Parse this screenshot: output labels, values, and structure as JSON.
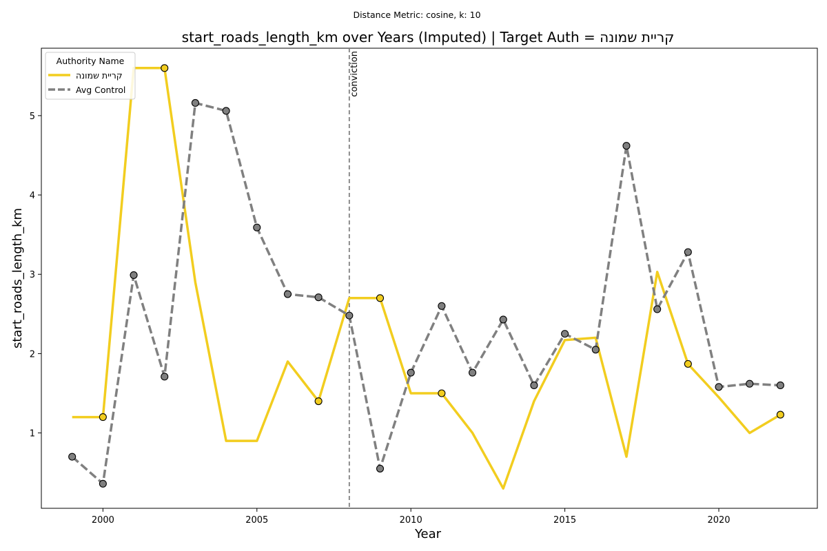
{
  "chart_data": {
    "type": "line",
    "subtitle": "Distance Metric: cosine, k: 10",
    "title": "start_roads_length_km over Years (Imputed) | Target Auth = קריית שמונה",
    "xlabel": "Year",
    "ylabel": "start_roads_length_km",
    "xlim": [
      1998,
      2023.2
    ],
    "ylim": [
      0.05,
      5.85
    ],
    "xticks": [
      2000,
      2005,
      2010,
      2015,
      2020
    ],
    "yticks": [
      1,
      2,
      3,
      4,
      5
    ],
    "grid": false,
    "legend": {
      "title": "Authority Name",
      "placement": "top-left"
    },
    "vline": {
      "x": 2008,
      "label": "conviction"
    },
    "series": [
      {
        "name": "קריית שמונה",
        "color": "#f2cd1f",
        "style": "solid",
        "x": [
          1999,
          2000,
          2001,
          2002,
          2003,
          2004,
          2005,
          2006,
          2007,
          2008,
          2009,
          2010,
          2011,
          2012,
          2013,
          2014,
          2015,
          2016,
          2017,
          2018,
          2019,
          2020,
          2021,
          2022
        ],
        "values": [
          1.2,
          1.2,
          5.6,
          5.6,
          2.9,
          0.9,
          0.9,
          1.9,
          1.4,
          2.7,
          2.7,
          1.5,
          1.5,
          1.0,
          0.3,
          1.4,
          2.17,
          2.2,
          0.7,
          3.03,
          1.87,
          1.45,
          1.0,
          1.23
        ],
        "markers_x": [
          2000,
          2002,
          2007,
          2009,
          2011,
          2019,
          2022
        ],
        "markers_y": [
          1.2,
          5.6,
          1.4,
          2.7,
          1.5,
          1.87,
          1.23
        ]
      },
      {
        "name": "Avg Control",
        "color": "#808080",
        "style": "dashed",
        "x": [
          1999,
          2000,
          2001,
          2002,
          2003,
          2004,
          2005,
          2006,
          2007,
          2008,
          2009,
          2010,
          2011,
          2012,
          2013,
          2014,
          2015,
          2016,
          2017,
          2018,
          2019,
          2020,
          2021,
          2022
        ],
        "values": [
          0.7,
          0.36,
          2.99,
          1.71,
          5.16,
          5.06,
          3.59,
          2.75,
          2.71,
          2.48,
          0.55,
          1.76,
          2.6,
          1.76,
          2.43,
          1.6,
          2.25,
          2.05,
          4.62,
          2.56,
          3.28,
          1.58,
          1.62,
          1.6
        ],
        "markers_x": [
          1999,
          2000,
          2001,
          2002,
          2003,
          2004,
          2005,
          2006,
          2007,
          2008,
          2009,
          2010,
          2011,
          2012,
          2013,
          2014,
          2015,
          2016,
          2017,
          2018,
          2019,
          2020,
          2021,
          2022
        ],
        "markers_y": [
          0.7,
          0.36,
          2.99,
          1.71,
          5.16,
          5.06,
          3.59,
          2.75,
          2.71,
          2.48,
          0.55,
          1.76,
          2.6,
          1.76,
          2.43,
          1.6,
          2.25,
          2.05,
          4.62,
          2.56,
          3.28,
          1.58,
          1.62,
          1.6
        ]
      }
    ]
  }
}
